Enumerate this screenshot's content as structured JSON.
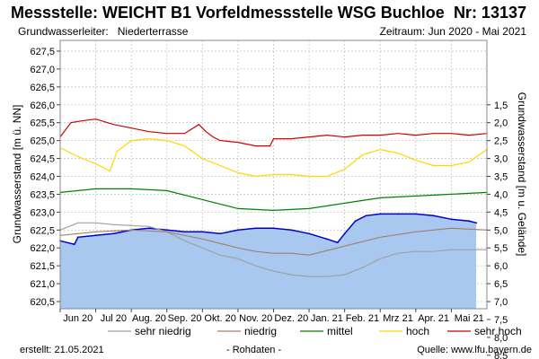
{
  "header": {
    "title": "Messstelle: WEICHT B1 Vorfeldmessstelle WSG Buchloe",
    "nr": "Nr: 13137",
    "aquifer_label": "Grundwasserleiter:",
    "aquifer_value": "Niederterrasse",
    "period": "Zeitraum: Jun 2020 - Mai 2021"
  },
  "footer": {
    "created": "erstellt:  21.05.2021",
    "note": "- Rohdaten -",
    "source": "Quelle:  www.lfu.bayern.de"
  },
  "colors": {
    "sehr_niedrig": "#a0a0a0",
    "niedrig": "#a08070",
    "mittel": "#008000",
    "hoch": "#ffd700",
    "sehr_hoch": "#cc0000",
    "level_line": "#0000cc",
    "level_fill": "#a8c8f0"
  },
  "chart_data": {
    "type": "line",
    "title": "",
    "ylabel_left": "Grundwasserstand [m ü. NN]",
    "ylabel_right": "Grundwasserstand [m u. Gelände]",
    "ylim": [
      620.3,
      627.8
    ],
    "right_axis_offset": 623.5,
    "y_ticks_left": [
      "620,5",
      "621,0",
      "621,5",
      "622,0",
      "622,5",
      "623,0",
      "623,5",
      "624,0",
      "624,5",
      "625,0",
      "625,5",
      "626,0",
      "626,5",
      "627,0",
      "627,5"
    ],
    "y_ticks_right": [
      "1,5",
      "2,0",
      "2,5",
      "3,0",
      "3,5",
      "4,0",
      "4,5",
      "5,0",
      "5,5",
      "6,0",
      "6,5",
      "7,0",
      "7,5",
      "8,0",
      "8,5"
    ],
    "x_range": [
      0,
      12
    ],
    "x_tick_labels": [
      "Jun 20",
      "Jul 20",
      "Aug. 20",
      "Sep. 20",
      "Okt. 20",
      "Nov. 20",
      "Dez. 20",
      "Jan. 21",
      "Feb. 21",
      "Mrz 21",
      "Apr. 21",
      "Mai 21"
    ],
    "x_tick_positions": [
      0.5,
      1.5,
      2.5,
      3.5,
      4.5,
      5.5,
      6.5,
      7.5,
      8.5,
      9.5,
      10.5,
      11.5
    ],
    "legend_position": "bottom",
    "legend": [
      "sehr niedrig",
      "niedrig",
      "mittel",
      "hoch",
      "sehr hoch"
    ],
    "series": [
      {
        "name": "sehr hoch",
        "color_key": "sehr_hoch",
        "x": [
          0,
          0.3,
          0.6,
          1.0,
          1.5,
          2.0,
          2.5,
          3.0,
          3.5,
          3.9,
          4.1,
          4.3,
          4.5,
          5.0,
          5.5,
          5.9,
          6.0,
          6.5,
          7.0,
          7.5,
          8.0,
          8.5,
          9.0,
          9.5,
          10.0,
          10.5,
          11.0,
          11.5,
          12
        ],
        "y": [
          625.1,
          625.5,
          625.55,
          625.6,
          625.45,
          625.35,
          625.25,
          625.2,
          625.2,
          625.45,
          625.25,
          625.1,
          625.0,
          624.95,
          624.85,
          624.85,
          625.05,
          625.05,
          625.1,
          625.15,
          625.1,
          625.15,
          625.15,
          625.2,
          625.15,
          625.2,
          625.2,
          625.15,
          625.2
        ]
      },
      {
        "name": "hoch",
        "color_key": "hoch",
        "x": [
          0,
          0.5,
          1.0,
          1.4,
          1.6,
          2.0,
          2.5,
          3.0,
          3.5,
          4.0,
          4.5,
          5.0,
          5.5,
          6.0,
          6.5,
          7.0,
          7.5,
          8.0,
          8.5,
          9.0,
          9.5,
          10.0,
          10.5,
          11.0,
          11.5,
          12
        ],
        "y": [
          624.8,
          624.55,
          624.35,
          624.15,
          624.7,
          625.0,
          625.05,
          625.0,
          624.85,
          624.5,
          624.3,
          624.1,
          624.0,
          624.05,
          624.05,
          624.0,
          624.0,
          624.2,
          624.6,
          624.75,
          624.65,
          624.45,
          624.3,
          624.3,
          624.4,
          624.75
        ]
      },
      {
        "name": "mittel",
        "color_key": "mittel",
        "x": [
          0,
          1,
          2,
          3,
          4,
          5,
          6,
          7,
          8,
          9,
          10,
          11,
          12
        ],
        "y": [
          623.55,
          623.65,
          623.65,
          623.6,
          623.35,
          623.1,
          623.05,
          623.1,
          623.25,
          623.4,
          623.45,
          623.5,
          623.55
        ]
      },
      {
        "name": "niedrig",
        "color_key": "niedrig",
        "x": [
          0,
          1,
          2,
          3,
          4,
          5,
          5.5,
          6,
          6.5,
          7,
          8,
          9,
          10,
          11,
          12
        ],
        "y": [
          622.35,
          622.45,
          622.5,
          622.45,
          622.25,
          622.0,
          621.9,
          621.85,
          621.85,
          621.8,
          622.05,
          622.3,
          622.45,
          622.55,
          622.5
        ]
      },
      {
        "name": "sehr niedrig",
        "color_key": "sehr_niedrig",
        "x": [
          0,
          0.5,
          1.0,
          1.5,
          2.5,
          3.0,
          3.5,
          4.0,
          4.5,
          5.0,
          5.5,
          6.0,
          6.5,
          7.0,
          7.5,
          8.0,
          8.5,
          9.0,
          9.5,
          10.0,
          10.5,
          11.0,
          12
        ],
        "y": [
          622.5,
          622.7,
          622.7,
          622.65,
          622.6,
          622.45,
          622.2,
          622.0,
          621.8,
          621.7,
          621.5,
          621.35,
          621.25,
          621.2,
          621.2,
          621.25,
          621.45,
          621.7,
          621.85,
          621.9,
          621.9,
          621.95,
          621.95
        ]
      },
      {
        "name": "Grundwasserstand",
        "color_key": "level_line",
        "filled": true,
        "x": [
          0,
          0.4,
          0.5,
          1.0,
          1.5,
          2.0,
          2.5,
          3.0,
          3.5,
          4.0,
          4.5,
          5.0,
          5.5,
          6.0,
          6.5,
          7.0,
          7.5,
          7.8,
          8.0,
          8.3,
          8.6,
          9.0,
          9.5,
          10.0,
          10.5,
          11.0,
          11.5,
          11.7
        ],
        "y": [
          622.2,
          622.1,
          622.3,
          622.35,
          622.4,
          622.5,
          622.55,
          622.5,
          622.45,
          622.45,
          622.4,
          622.5,
          622.55,
          622.55,
          622.5,
          622.4,
          622.25,
          622.15,
          622.4,
          622.75,
          622.9,
          622.95,
          622.95,
          622.95,
          622.9,
          622.8,
          622.75,
          622.7
        ]
      }
    ]
  }
}
